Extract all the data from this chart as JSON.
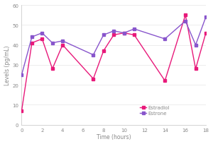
{
  "estradiol_x": [
    0,
    1,
    2,
    3,
    4,
    7,
    8,
    9,
    10,
    11,
    14,
    16,
    17,
    18
  ],
  "estradiol_y": [
    7,
    41,
    43,
    28,
    40,
    23,
    37,
    45,
    46,
    45,
    22,
    55,
    28,
    46
  ],
  "estrone_x": [
    0,
    1,
    2,
    3,
    4,
    7,
    8,
    9,
    10,
    11,
    14,
    16,
    17,
    18
  ],
  "estrone_y": [
    25,
    44,
    46,
    41,
    42,
    35,
    45,
    47,
    46,
    48,
    43,
    52,
    40,
    54
  ],
  "estradiol_color": "#e8197a",
  "estrone_color": "#8855cc",
  "xlabel": "Time (hours)",
  "ylabel": "Levels (pg/mL)",
  "xlim": [
    0,
    18
  ],
  "ylim": [
    0,
    60
  ],
  "xticks": [
    0,
    2,
    4,
    6,
    8,
    10,
    12,
    14,
    16,
    18
  ],
  "yticks": [
    0,
    10,
    20,
    30,
    40,
    50,
    60
  ],
  "legend_labels": [
    "Estradiol",
    "Estrone"
  ],
  "marker": "s",
  "marker_size": 2.5,
  "line_width": 1.0,
  "bg_color": "#ffffff",
  "spine_color": "#cccccc",
  "tick_color": "#888888",
  "label_fontsize": 5.5,
  "tick_fontsize": 5,
  "legend_fontsize": 5
}
